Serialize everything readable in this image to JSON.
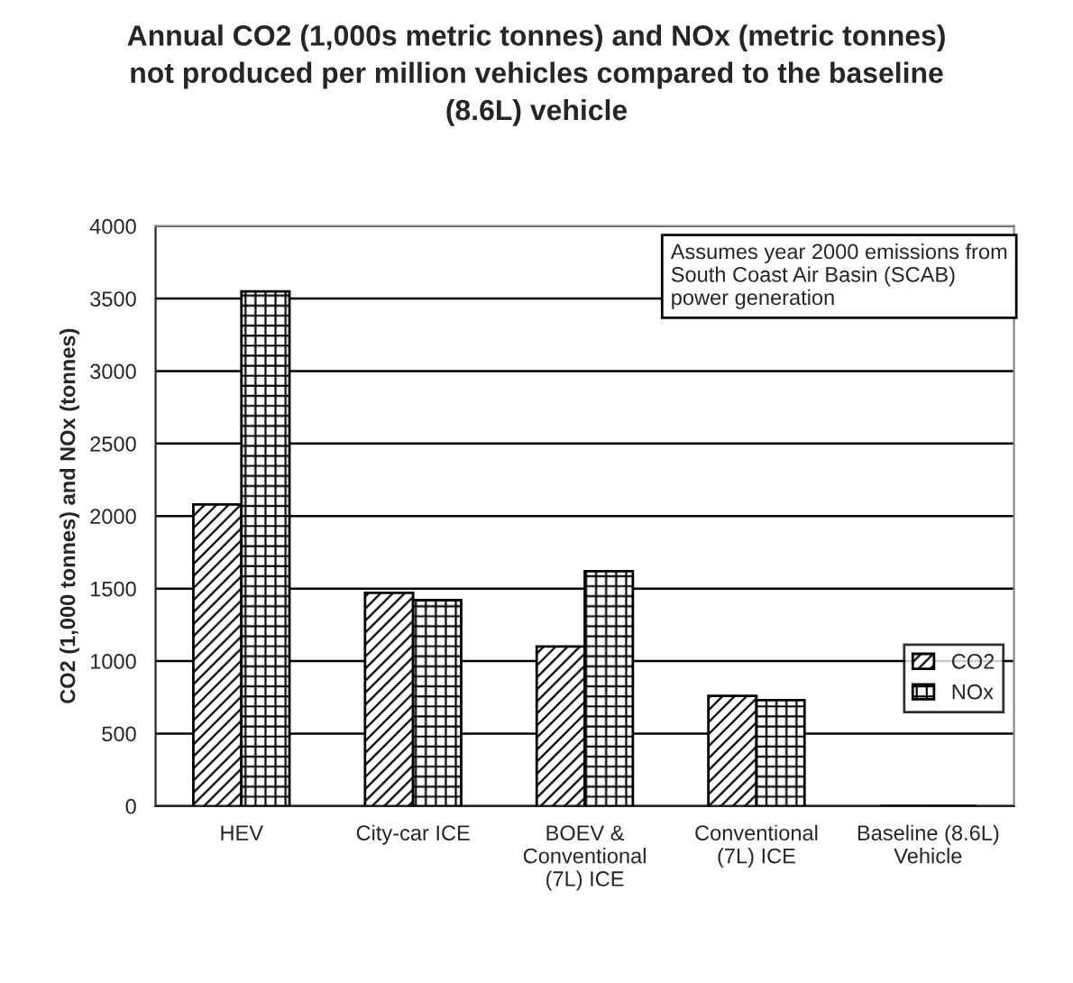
{
  "chart_data": {
    "type": "bar",
    "title": "Annual CO2 (1,000s metric tonnes) and NOx (metric tonnes)\nnot produced per million vehicles compared to the baseline\n(8.6L) vehicle",
    "ylabel": "CO2 (1,000 tonnes) and NOx (tonnes)",
    "categories": [
      "HEV",
      "City-car ICE",
      "BOEV &\nConventional\n(7L) ICE",
      "Conventional\n(7L) ICE",
      "Baseline (8.6L)\nVehicle"
    ],
    "series": [
      {
        "name": "CO2",
        "color": "#000000",
        "values": [
          2080,
          1470,
          1100,
          760,
          0
        ]
      },
      {
        "name": "NOx",
        "color": "#000000",
        "values": [
          3550,
          1420,
          1620,
          730,
          0
        ]
      }
    ],
    "ylim": [
      0,
      4000
    ],
    "yticks": [
      0,
      500,
      1000,
      1500,
      2000,
      2500,
      3000,
      3500,
      4000
    ],
    "grid": "y",
    "legend": "right",
    "annotations": [
      "Assumes year 2000 emissions from\nSouth Coast Air Basin (SCAB)\npower generation"
    ]
  }
}
